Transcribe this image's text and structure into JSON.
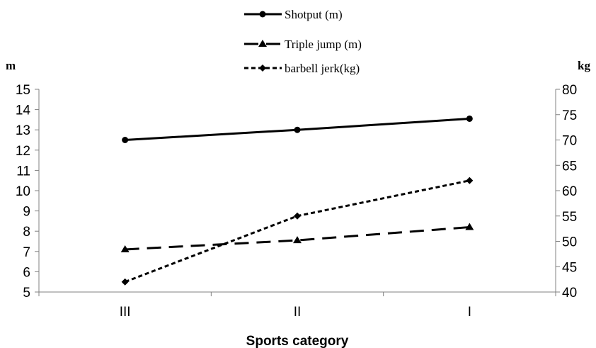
{
  "chart_data": {
    "type": "line",
    "categories": [
      "III",
      "II",
      "I"
    ],
    "xlabel": "Sports category",
    "y_left": {
      "unit": "m",
      "min": 5,
      "max": 15,
      "step": 1,
      "ticks": [
        "5",
        "6",
        "7",
        "8",
        "9",
        "10",
        "11",
        "12",
        "13",
        "14",
        "15"
      ]
    },
    "y_right": {
      "unit": "kg",
      "min": 40,
      "max": 80,
      "step": 5,
      "ticks": [
        "40",
        "45",
        "50",
        "55",
        "60",
        "65",
        "70",
        "75",
        "80"
      ]
    },
    "grid": false,
    "legend_position": "top-center",
    "series": [
      {
        "name": "Shotput (m)",
        "axis": "left",
        "values": [
          12.5,
          13.0,
          13.55
        ],
        "line_style": "solid",
        "marker": "circle",
        "color": "#000000"
      },
      {
        "name": "Triple jump (m)",
        "axis": "left",
        "values": [
          7.1,
          7.55,
          8.2
        ],
        "line_style": "long-dash",
        "marker": "triangle",
        "color": "#000000"
      },
      {
        "name": "barbell jerk(kg)",
        "axis": "right",
        "values": [
          42,
          55,
          62
        ],
        "line_style": "short-dash",
        "marker": "diamond",
        "color": "#000000"
      }
    ]
  }
}
